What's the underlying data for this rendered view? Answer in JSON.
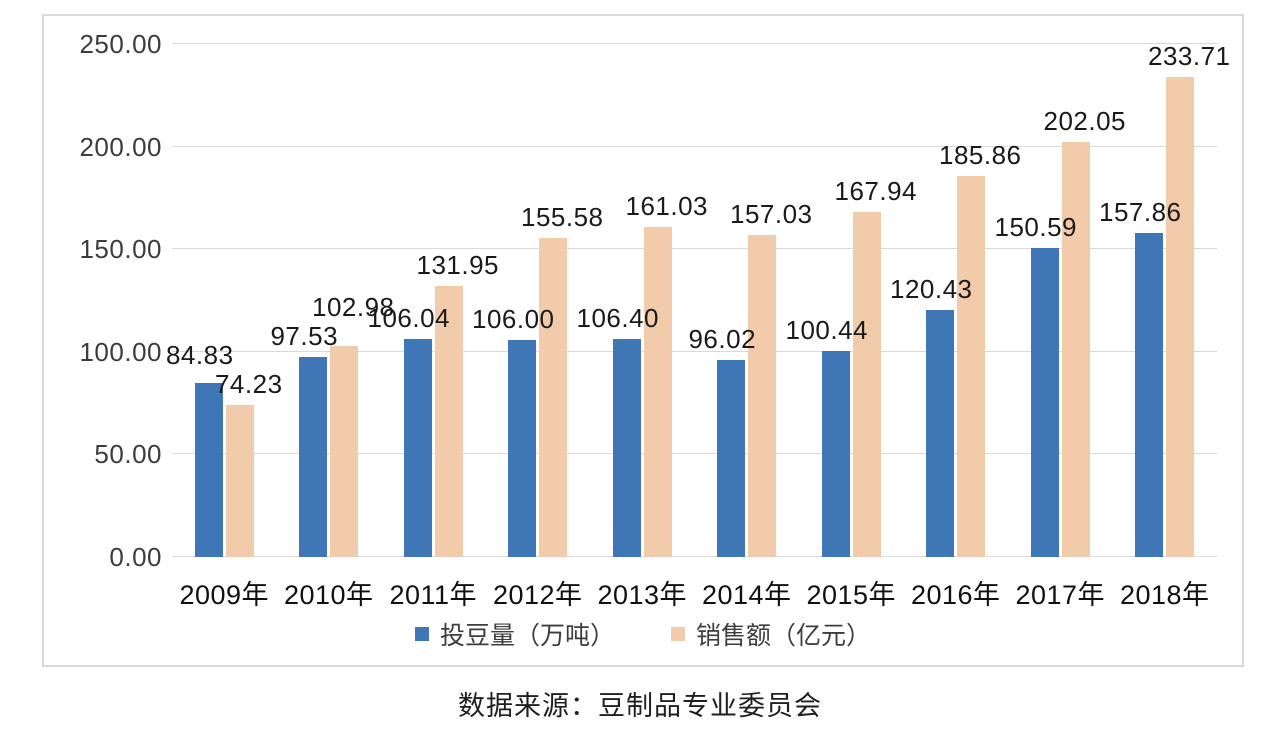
{
  "caption": "数据来源：豆制品专业委员会",
  "chart_data": {
    "type": "bar",
    "categories": [
      "2009年",
      "2010年",
      "2011年",
      "2012年",
      "2013年",
      "2014年",
      "2015年",
      "2016年",
      "2017年",
      "2018年"
    ],
    "series": [
      {
        "name": "投豆量（万吨）",
        "color": "#3e76b6",
        "values": [
          84.83,
          97.53,
          106.04,
          106.0,
          106.4,
          96.02,
          100.44,
          120.43,
          150.59,
          157.86
        ],
        "labels": [
          "84.83",
          "97.53",
          "106.04",
          "106.00",
          "106.40",
          "96.02",
          "100.44",
          "120.43",
          "150.59",
          "157.86"
        ]
      },
      {
        "name": "销售额（亿元）",
        "color": "#f1cbaa",
        "values": [
          74.23,
          102.98,
          131.95,
          155.58,
          161.03,
          157.03,
          167.94,
          185.86,
          202.05,
          233.71
        ],
        "labels": [
          "74.23",
          "102.98",
          "131.95",
          "155.58",
          "161.03",
          "157.03",
          "167.94",
          "185.86",
          "202.05",
          "233.71"
        ]
      }
    ],
    "ylim": [
      0,
      250
    ],
    "yticks": [
      0,
      50,
      100,
      150,
      200,
      250
    ],
    "ytick_labels": [
      "0.00",
      "50.00",
      "100.00",
      "150.00",
      "200.00",
      "250.00"
    ],
    "grid": true,
    "legend_position": "bottom",
    "value_labels_shown": true,
    "colors": {
      "grid": "#d9d9d9",
      "frame_border": "#d9d9d9",
      "label_text": "#1a1a1a"
    }
  }
}
